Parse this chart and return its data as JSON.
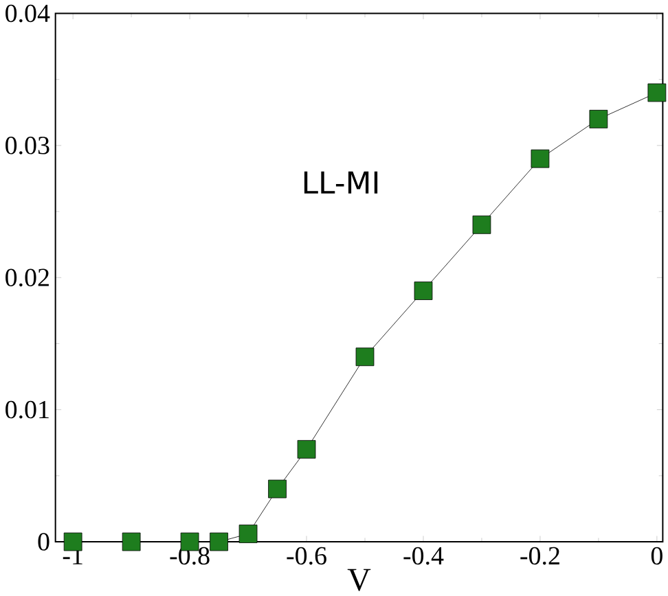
{
  "chart_data": {
    "type": "line",
    "xlabel": "V",
    "annotations": [
      "LL-MI"
    ],
    "x": [
      -1,
      -0.9,
      -0.8,
      -0.75,
      -0.7,
      -0.65,
      -0.6,
      -0.5,
      -0.4,
      -0.3,
      -0.2,
      -0.1,
      0
    ],
    "series": [
      {
        "color": "#1e7d1e",
        "values": [
          0,
          0,
          0,
          0,
          0.0006,
          0.004,
          0.007,
          0.014,
          0.019,
          0.024,
          0.029,
          0.032,
          0.034
        ]
      }
    ],
    "xlim": [
      -1.03,
      0.01
    ],
    "ylim": [
      0,
      0.04
    ],
    "xticks": [
      -1,
      -0.8,
      -0.6,
      -0.4,
      -0.2,
      0
    ],
    "yticks": [
      0,
      0.01,
      0.02,
      0.03,
      0.04
    ],
    "marker": "square",
    "line_style": "solid"
  }
}
